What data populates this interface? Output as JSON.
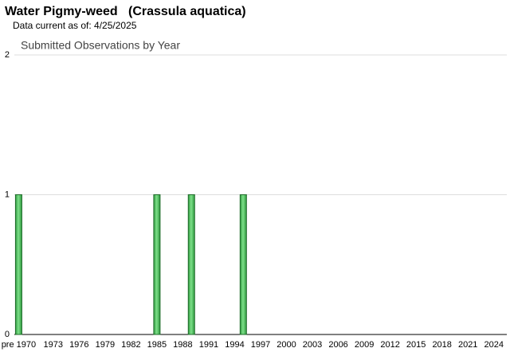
{
  "chart_data": {
    "type": "bar",
    "title": "Water Pigmy-weed   (Crassula aquatica)",
    "subtitle": "Data current as of: 4/25/2025",
    "chart_title": "Submitted Observations by Year",
    "categories": [
      "pre 1970",
      null,
      null,
      null,
      "1973",
      null,
      null,
      "1976",
      null,
      null,
      "1979",
      null,
      null,
      "1982",
      null,
      null,
      "1985",
      null,
      null,
      "1988",
      null,
      null,
      "1991",
      null,
      null,
      "1994",
      null,
      null,
      "1997",
      null,
      null,
      "2000",
      null,
      null,
      "2003",
      null,
      null,
      "2006",
      null,
      null,
      "2009",
      null,
      null,
      "2012",
      null,
      null,
      "2015",
      null,
      null,
      "2018",
      null,
      null,
      "2021",
      null,
      null,
      "2024",
      null
    ],
    "values": [
      1,
      0,
      0,
      0,
      0,
      0,
      0,
      0,
      0,
      0,
      0,
      0,
      0,
      0,
      0,
      0,
      1,
      0,
      0,
      0,
      1,
      0,
      0,
      0,
      0,
      0,
      1,
      0,
      0,
      0,
      0,
      0,
      0,
      0,
      0,
      0,
      0,
      0,
      0,
      0,
      0,
      0,
      0,
      0,
      0,
      0,
      0,
      0,
      0,
      0,
      0,
      0,
      0,
      0,
      0,
      0,
      0
    ],
    "color": "#4cbb5c",
    "ylim": [
      0,
      2
    ],
    "yticks": [
      0,
      1,
      2
    ],
    "grid": true
  }
}
